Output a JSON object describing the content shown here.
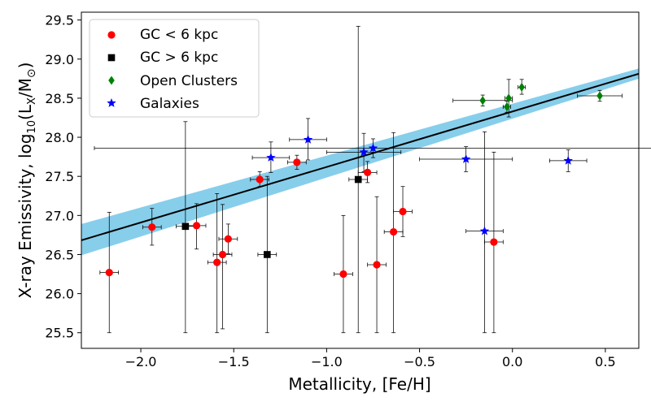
{
  "chart_data": {
    "type": "scatter",
    "xlabel": "Metallicity, [Fe/H]",
    "ylabel_main": "X-ray Emissivity, log",
    "ylabel_sub": "10",
    "ylabel_paren": "(L",
    "ylabel_x": "X",
    "ylabel_rest": "/M",
    "ylabel_sun": "⊙",
    "ylabel_close": ")",
    "xlim": [
      -2.32,
      0.68
    ],
    "ylim": [
      25.3,
      29.6
    ],
    "xticks": [
      -2.0,
      -1.5,
      -1.0,
      -0.5,
      0.0,
      0.5
    ],
    "xtick_labels": [
      "−2.0",
      "−1.5",
      "−1.0",
      "−0.5",
      "0.0",
      "0.5"
    ],
    "yticks": [
      25.5,
      26.0,
      26.5,
      27.0,
      27.5,
      28.0,
      28.5,
      29.0,
      29.5
    ],
    "ytick_labels": [
      "25.5",
      "26.0",
      "26.5",
      "27.0",
      "27.5",
      "28.0",
      "28.5",
      "29.0",
      "29.5"
    ],
    "fit": {
      "slope": 0.71,
      "intercept": 28.33,
      "band_lower": [
        26.49,
        28.75
      ],
      "band_upper": [
        26.89,
        28.88
      ]
    },
    "legend": {
      "position": "top-left",
      "entries": [
        "GC < 6 kpc",
        "GC > 6 kpc",
        "Open Clusters",
        "Galaxies"
      ]
    },
    "series": [
      {
        "name": "GC < 6 kpc",
        "marker": "circle",
        "color": "#ff0000",
        "points": [
          {
            "x": -2.17,
            "y": 26.27,
            "xerr": 0.05,
            "ylo": 25.5,
            "yhi": 27.04
          },
          {
            "x": -1.94,
            "y": 26.85,
            "xerr": 0.05,
            "ylo": 26.62,
            "yhi": 27.09
          },
          {
            "x": -1.7,
            "y": 26.87,
            "xerr": 0.05,
            "ylo": 26.57,
            "yhi": 27.15
          },
          {
            "x": -1.59,
            "y": 26.4,
            "xerr": 0.05,
            "ylo": 25.5,
            "yhi": 27.28
          },
          {
            "x": -1.56,
            "y": 26.5,
            "xerr": 0.05,
            "ylo": 25.55,
            "yhi": 27.14
          },
          {
            "x": -1.53,
            "y": 26.7,
            "xerr": 0.05,
            "ylo": 26.51,
            "yhi": 26.89
          },
          {
            "x": -1.36,
            "y": 27.46,
            "xerr": 0.05,
            "ylo": 27.37,
            "yhi": 27.56
          },
          {
            "x": -1.16,
            "y": 27.68,
            "xerr": 0.05,
            "ylo": 27.59,
            "yhi": 27.77
          },
          {
            "x": -0.91,
            "y": 26.25,
            "xerr": 0.05,
            "ylo": 25.5,
            "yhi": 27.0
          },
          {
            "x": -0.78,
            "y": 27.55,
            "xerr": 0.05,
            "ylo": 27.42,
            "yhi": 27.69
          },
          {
            "x": -0.73,
            "y": 26.37,
            "xerr": 0.05,
            "ylo": 25.5,
            "yhi": 27.24
          },
          {
            "x": -0.64,
            "y": 26.79,
            "xerr": 0.05,
            "ylo": 25.5,
            "yhi": 28.06
          },
          {
            "x": -0.59,
            "y": 27.05,
            "xerr": 0.05,
            "ylo": 26.73,
            "yhi": 27.37
          },
          {
            "x": -0.1,
            "y": 26.66,
            "xerr": 0.05,
            "ylo": 25.5,
            "yhi": 27.81
          }
        ]
      },
      {
        "name": "GC > 6 kpc",
        "marker": "square",
        "color": "#000000",
        "points": [
          {
            "x": -1.76,
            "y": 26.86,
            "xerr": 0.05,
            "ylo": 25.5,
            "yhi": 28.2
          },
          {
            "x": -1.32,
            "y": 26.5,
            "xerr": 0.05,
            "ylo": 25.5,
            "yhi": 27.5
          },
          {
            "x": -0.83,
            "y": 27.46,
            "xerr": 0.05,
            "ylo": 25.5,
            "yhi": 29.42
          }
        ]
      },
      {
        "name": "Open Clusters",
        "marker": "diamond",
        "color": "#008000",
        "points": [
          {
            "x": -0.16,
            "y": 28.47,
            "xerr": 0.16,
            "ylo": 28.4,
            "yhi": 28.54
          },
          {
            "x": -0.03,
            "y": 28.39,
            "xerr": 0.02,
            "ylo": 28.32,
            "yhi": 28.46
          },
          {
            "x": -0.02,
            "y": 28.5,
            "xerr": 0.02,
            "ylo": 28.26,
            "yhi": 28.74
          },
          {
            "x": 0.05,
            "y": 28.64,
            "xerr": 0.02,
            "ylo": 28.55,
            "yhi": 28.74
          },
          {
            "x": 0.47,
            "y": 28.53,
            "xerr": 0.12,
            "ylo": 28.46,
            "yhi": 28.6
          }
        ]
      },
      {
        "name": "Galaxies",
        "marker": "star",
        "color": "#0000ff",
        "points": [
          {
            "x": -1.3,
            "y": 27.74,
            "xerr": 0.1,
            "ylo": 27.55,
            "yhi": 27.94
          },
          {
            "x": -1.1,
            "y": 27.97,
            "xerr": 0.1,
            "ylo": 27.71,
            "yhi": 28.24
          },
          {
            "x": -0.8,
            "y": 27.81,
            "xerr": 0.2,
            "ylo": 27.56,
            "yhi": 28.05
          },
          {
            "x": -0.75,
            "y": 27.86,
            "xerr": 1.5,
            "ylo": 27.74,
            "yhi": 27.98
          },
          {
            "x": -0.25,
            "y": 27.72,
            "xerr": 0.25,
            "ylo": 27.56,
            "yhi": 27.88
          },
          {
            "x": -0.15,
            "y": 26.8,
            "xerr": 0.1,
            "ylo": 25.5,
            "yhi": 28.07
          },
          {
            "x": 0.3,
            "y": 27.7,
            "xerr": 0.1,
            "ylo": 27.56,
            "yhi": 27.84
          }
        ]
      }
    ]
  }
}
